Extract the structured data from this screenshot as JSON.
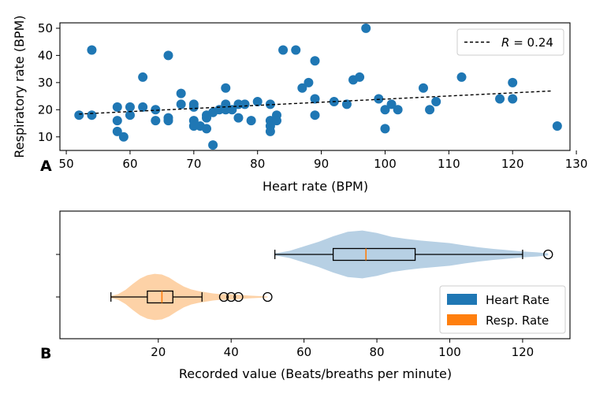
{
  "chart_data": [
    {
      "panel_label": "A",
      "type": "scatter",
      "xlabel": "Heart rate (BPM)",
      "ylabel": "Respiratory rate (BPM)",
      "xlim": [
        49,
        129
      ],
      "ylim": [
        5,
        52
      ],
      "xticks": [
        50,
        60,
        70,
        80,
        90,
        100,
        110,
        120,
        130
      ],
      "yticks": [
        10,
        20,
        30,
        40,
        50
      ],
      "point_color": "#1f77b4",
      "points": [
        {
          "x": 52,
          "y": 18
        },
        {
          "x": 54,
          "y": 42
        },
        {
          "x": 54,
          "y": 18
        },
        {
          "x": 58,
          "y": 21
        },
        {
          "x": 58,
          "y": 16
        },
        {
          "x": 58,
          "y": 12
        },
        {
          "x": 59,
          "y": 10
        },
        {
          "x": 60,
          "y": 21
        },
        {
          "x": 60,
          "y": 18
        },
        {
          "x": 62,
          "y": 32
        },
        {
          "x": 62,
          "y": 21
        },
        {
          "x": 64,
          "y": 20
        },
        {
          "x": 64,
          "y": 16
        },
        {
          "x": 66,
          "y": 40
        },
        {
          "x": 66,
          "y": 17
        },
        {
          "x": 66,
          "y": 16
        },
        {
          "x": 68,
          "y": 26
        },
        {
          "x": 68,
          "y": 22
        },
        {
          "x": 70,
          "y": 22
        },
        {
          "x": 70,
          "y": 21
        },
        {
          "x": 70,
          "y": 16
        },
        {
          "x": 70,
          "y": 14
        },
        {
          "x": 71,
          "y": 14
        },
        {
          "x": 72,
          "y": 18
        },
        {
          "x": 72,
          "y": 17
        },
        {
          "x": 72,
          "y": 13
        },
        {
          "x": 73,
          "y": 19
        },
        {
          "x": 73,
          "y": 7
        },
        {
          "x": 74,
          "y": 20
        },
        {
          "x": 75,
          "y": 28
        },
        {
          "x": 75,
          "y": 22
        },
        {
          "x": 75,
          "y": 20
        },
        {
          "x": 76,
          "y": 20
        },
        {
          "x": 77,
          "y": 22
        },
        {
          "x": 77,
          "y": 17
        },
        {
          "x": 78,
          "y": 22
        },
        {
          "x": 79,
          "y": 16
        },
        {
          "x": 80,
          "y": 23
        },
        {
          "x": 82,
          "y": 22
        },
        {
          "x": 82,
          "y": 16
        },
        {
          "x": 82,
          "y": 14
        },
        {
          "x": 82,
          "y": 12
        },
        {
          "x": 83,
          "y": 18
        },
        {
          "x": 83,
          "y": 16
        },
        {
          "x": 84,
          "y": 42
        },
        {
          "x": 86,
          "y": 42
        },
        {
          "x": 87,
          "y": 28
        },
        {
          "x": 88,
          "y": 30
        },
        {
          "x": 89,
          "y": 38
        },
        {
          "x": 89,
          "y": 24
        },
        {
          "x": 89,
          "y": 18
        },
        {
          "x": 92,
          "y": 23
        },
        {
          "x": 94,
          "y": 22
        },
        {
          "x": 95,
          "y": 31
        },
        {
          "x": 96,
          "y": 32
        },
        {
          "x": 97,
          "y": 50
        },
        {
          "x": 99,
          "y": 24
        },
        {
          "x": 100,
          "y": 20
        },
        {
          "x": 100,
          "y": 13
        },
        {
          "x": 101,
          "y": 22
        },
        {
          "x": 102,
          "y": 20
        },
        {
          "x": 106,
          "y": 28
        },
        {
          "x": 107,
          "y": 20
        },
        {
          "x": 108,
          "y": 23
        },
        {
          "x": 112,
          "y": 32
        },
        {
          "x": 118,
          "y": 24
        },
        {
          "x": 120,
          "y": 30
        },
        {
          "x": 120,
          "y": 24
        },
        {
          "x": 127,
          "y": 14
        }
      ],
      "trendline": {
        "x": [
          52,
          126
        ],
        "y": [
          18.4,
          26.9
        ],
        "style": "dashed",
        "color": "#000000"
      },
      "legend": {
        "label_prefix": "R",
        "label_value": "= 0.24",
        "placement": "top-right"
      }
    },
    {
      "panel_label": "B",
      "type": "violin+boxplot",
      "xlabel": "Recorded value (Beats/breaths per minute)",
      "xlim": [
        -7,
        133
      ],
      "xticks": [
        20,
        40,
        60,
        80,
        100,
        120
      ],
      "series": [
        {
          "name": "Heart Rate",
          "color": "#1f77b4",
          "violin_color": "#b3cde3",
          "median_color": "#ff7f0e",
          "box": {
            "whisker_low": 52,
            "q1": 68,
            "median": 77,
            "q3": 90.5,
            "whisker_high": 120,
            "outliers": [
              127
            ]
          },
          "density": [
            {
              "v": 52,
              "w": 0.04
            },
            {
              "v": 56,
              "w": 0.14
            },
            {
              "v": 60,
              "w": 0.32
            },
            {
              "v": 64,
              "w": 0.5
            },
            {
              "v": 68,
              "w": 0.72
            },
            {
              "v": 72,
              "w": 0.9
            },
            {
              "v": 76,
              "w": 0.95
            },
            {
              "v": 80,
              "w": 0.85
            },
            {
              "v": 84,
              "w": 0.7
            },
            {
              "v": 88,
              "w": 0.62
            },
            {
              "v": 92,
              "w": 0.55
            },
            {
              "v": 96,
              "w": 0.5
            },
            {
              "v": 100,
              "w": 0.45
            },
            {
              "v": 104,
              "w": 0.36
            },
            {
              "v": 108,
              "w": 0.28
            },
            {
              "v": 112,
              "w": 0.22
            },
            {
              "v": 116,
              "w": 0.17
            },
            {
              "v": 120,
              "w": 0.12
            },
            {
              "v": 124,
              "w": 0.08
            },
            {
              "v": 127,
              "w": 0.04
            }
          ]
        },
        {
          "name": "Resp. Rate",
          "color": "#ff7f0e",
          "violin_color": "#fdd0a2",
          "median_color": "#ff7f0e",
          "box": {
            "whisker_low": 7,
            "q1": 17,
            "median": 21,
            "q3": 24,
            "whisker_high": 32,
            "outliers": [
              38,
              40,
              42,
              50
            ]
          },
          "density": [
            {
              "v": 7,
              "w": 0.04
            },
            {
              "v": 9,
              "w": 0.12
            },
            {
              "v": 11,
              "w": 0.3
            },
            {
              "v": 13,
              "w": 0.55
            },
            {
              "v": 15,
              "w": 0.78
            },
            {
              "v": 17,
              "w": 0.92
            },
            {
              "v": 19,
              "w": 0.98
            },
            {
              "v": 21,
              "w": 0.95
            },
            {
              "v": 23,
              "w": 0.82
            },
            {
              "v": 25,
              "w": 0.62
            },
            {
              "v": 27,
              "w": 0.44
            },
            {
              "v": 29,
              "w": 0.32
            },
            {
              "v": 31,
              "w": 0.25
            },
            {
              "v": 33,
              "w": 0.2
            },
            {
              "v": 35,
              "w": 0.15
            },
            {
              "v": 37,
              "w": 0.12
            },
            {
              "v": 39,
              "w": 0.12
            },
            {
              "v": 41,
              "w": 0.11
            },
            {
              "v": 43,
              "w": 0.08
            },
            {
              "v": 45,
              "w": 0.06
            },
            {
              "v": 47,
              "w": 0.04
            },
            {
              "v": 50,
              "w": 0.02
            }
          ]
        }
      ],
      "legend": {
        "entries": [
          "Heart Rate",
          "Resp. Rate"
        ],
        "placement": "bottom-right"
      }
    }
  ]
}
